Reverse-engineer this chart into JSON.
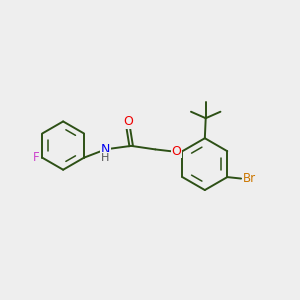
{
  "background_color": "#EEEEEE",
  "bond_color": "#2D5016",
  "atom_colors": {
    "N": "#0000EE",
    "O": "#EE0000",
    "F": "#CC44CC",
    "Br": "#CC7700",
    "H": "#555555"
  },
  "font_size": 8.5,
  "fig_width": 3.0,
  "fig_height": 3.0,
  "dpi": 100
}
